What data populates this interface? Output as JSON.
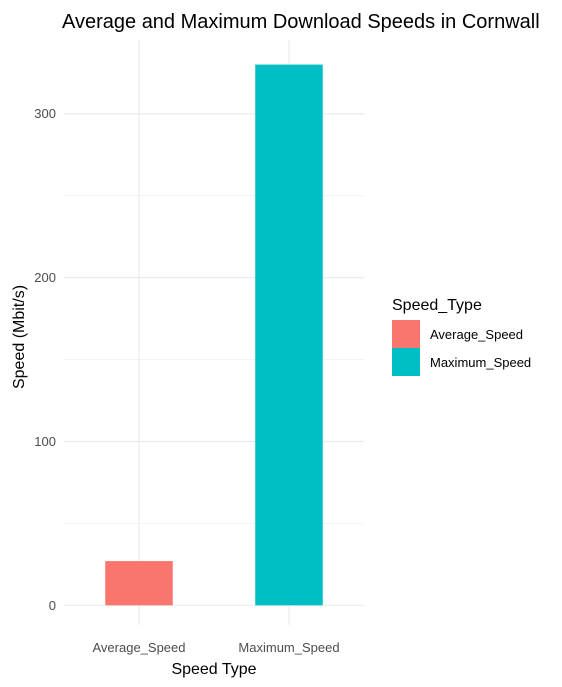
{
  "chart_data": {
    "type": "bar",
    "title": "Average and Maximum Download Speeds in Cornwall",
    "xlabel": "Speed Type",
    "ylabel": "Speed (Mbit/s)",
    "categories": [
      "Average_Speed",
      "Maximum_Speed"
    ],
    "values": [
      27,
      330
    ],
    "colors": [
      "#F8766D",
      "#00BFC4"
    ],
    "ylim": [
      -12,
      345
    ],
    "yticks": [
      0,
      100,
      200,
      300
    ],
    "grid": true,
    "legend": {
      "title": "Speed_Type",
      "placement": "right",
      "entries": [
        "Average_Speed",
        "Maximum_Speed"
      ]
    }
  }
}
